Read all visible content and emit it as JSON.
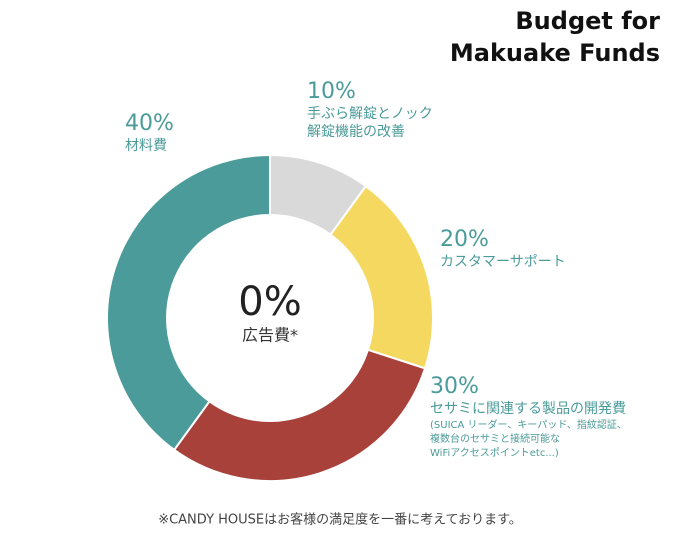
{
  "chart_data": {
    "type": "pie",
    "title": [
      "Budget for",
      "Makuake Funds"
    ],
    "categories": [
      [
        "手ぶら解錠とノック",
        "解錠機能の改善"
      ],
      [
        "カスタマーサポート"
      ],
      [
        "セサミに関連する製品の開発費"
      ],
      [
        "材料費"
      ]
    ],
    "sublabels": [
      null,
      null,
      [
        "(SUICA リーダー、キーパッド、指紋認証、",
        "複数台のセサミと接続可能な",
        "WiFiアクセスポイントetc...)"
      ],
      null
    ],
    "values": [
      10,
      20,
      30,
      40
    ],
    "value_labels": [
      "10%",
      "20%",
      "30%",
      "40%"
    ],
    "colors": [
      "#d9d9d9",
      "#f4d860",
      "#a8413a",
      "#4a9b99"
    ],
    "center": {
      "value": 0,
      "label": "0%",
      "text": "広告費*"
    },
    "footnote": "※CANDY HOUSEはお客様の満足度を一番に考えております。"
  }
}
